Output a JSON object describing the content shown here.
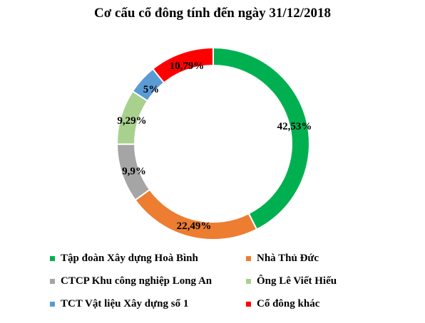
{
  "chart_data": {
    "type": "pie",
    "title": "Cơ cấu cổ đông tính đến ngày 31/12/2018",
    "slices": [
      {
        "name": "Tập đoàn Xây dựng Hoà Bình",
        "value": 42.53,
        "label": "42,53%",
        "color": "#00B050"
      },
      {
        "name": "Nhà Thủ Đức",
        "value": 22.49,
        "label": "22,49%",
        "color": "#ED7D31"
      },
      {
        "name": "CTCP Khu công nghiệp Long An",
        "value": 9.9,
        "label": "9,9%",
        "color": "#A5A5A5"
      },
      {
        "name": "Ông Lê Viết Hiếu",
        "value": 9.29,
        "label": "9,29%",
        "color": "#A9D18E"
      },
      {
        "name": "TCT Vật liệu Xây dựng số 1",
        "value": 5,
        "label": "5%",
        "color": "#5B9BD5"
      },
      {
        "name": "Cổ đông khác",
        "value": 10.79,
        "label": "10,79%",
        "color": "#FF0000"
      }
    ],
    "style": "donut",
    "legend_position": "bottom"
  }
}
